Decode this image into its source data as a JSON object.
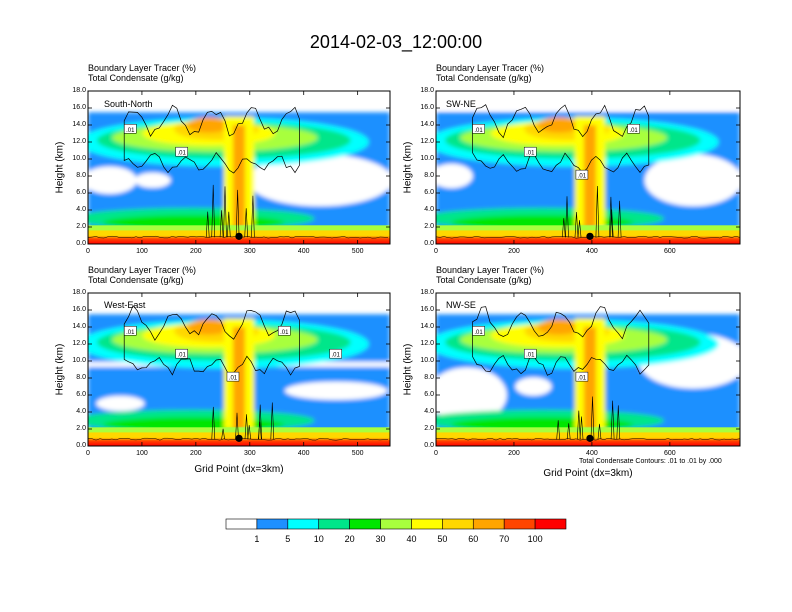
{
  "title": "2014-02-03_12:00:00",
  "chart_data": [
    {
      "type": "heatmap",
      "panel": "South-North",
      "title_lines": [
        "Boundary Layer Tracer   (%)",
        "Total Condensate   (g/kg)"
      ],
      "ylabel": "Height (km)",
      "xlabel": "",
      "xlim": [
        0,
        560
      ],
      "ylim": [
        0,
        18
      ],
      "xticks": [
        "0",
        "100",
        "200",
        "300",
        "400",
        "500"
      ],
      "xtick_values": [
        0,
        100,
        200,
        300,
        400,
        500
      ],
      "yticks": [
        "0.0",
        "2.0",
        "4.0",
        "6.0",
        "8.0",
        "10.0",
        "12.0",
        "14.0",
        "16.0",
        "18.0"
      ],
      "marker_x": 280,
      "contour_labels": [
        ".01",
        ".01"
      ]
    },
    {
      "type": "heatmap",
      "panel": "SW-NE",
      "title_lines": [
        "Boundary Layer Tracer   (%)",
        "Total Condensate   (g/kg)"
      ],
      "ylabel": "Height (km)",
      "xlabel": "",
      "xlim": [
        0,
        780
      ],
      "ylim": [
        0,
        18
      ],
      "xticks": [
        "0",
        "200",
        "400",
        "600"
      ],
      "xtick_values": [
        0,
        200,
        400,
        600
      ],
      "yticks": [
        "0.0",
        "2.0",
        "4.0",
        "6.0",
        "8.0",
        "10.0",
        "12.0",
        "14.0",
        "16.0",
        "18.0"
      ],
      "marker_x": 395,
      "contour_labels": [
        ".01",
        ".01",
        ".01",
        ".01"
      ]
    },
    {
      "type": "heatmap",
      "panel": "West-East",
      "title_lines": [
        "Boundary Layer Tracer   (%)",
        "Total Condensate   (g/kg)"
      ],
      "ylabel": "Height (km)",
      "xlabel": "Grid Point (dx=3km)",
      "xlim": [
        0,
        560
      ],
      "ylim": [
        0,
        18
      ],
      "xticks": [
        "0",
        "100",
        "200",
        "300",
        "400",
        "500"
      ],
      "xtick_values": [
        0,
        100,
        200,
        300,
        400,
        500
      ],
      "yticks": [
        "0.0",
        "2.0",
        "4.0",
        "6.0",
        "8.0",
        "10.0",
        "12.0",
        "14.0",
        "16.0",
        "18.0"
      ],
      "marker_x": 280,
      "contour_labels": [
        ".01",
        ".01",
        ".01",
        ".01",
        ".01"
      ]
    },
    {
      "type": "heatmap",
      "panel": "NW-SE",
      "title_lines": [
        "Boundary Layer Tracer   (%)",
        "Total Condensate   (g/kg)"
      ],
      "ylabel": "Height (km)",
      "xlabel": "Grid Point (dx=3km)",
      "xlim": [
        0,
        780
      ],
      "ylim": [
        0,
        18
      ],
      "xticks": [
        "0",
        "200",
        "400",
        "600"
      ],
      "xtick_values": [
        0,
        200,
        400,
        600
      ],
      "yticks": [
        "0.0",
        "2.0",
        "4.0",
        "6.0",
        "8.0",
        "10.0",
        "12.0",
        "14.0",
        "16.0",
        "18.0"
      ],
      "marker_x": 395,
      "contour_labels": [
        ".01",
        ".01",
        ".01"
      ]
    }
  ],
  "contour_note": "Total Condensate Contours: .01 to .01 by .000",
  "colorbar": {
    "labels": [
      "1",
      "5",
      "10",
      "20",
      "30",
      "40",
      "50",
      "60",
      "70",
      "100"
    ],
    "colors": [
      "#ffffff",
      "#1e90ff",
      "#00ffff",
      "#00e68a",
      "#00e600",
      "#a8ff3e",
      "#ffff00",
      "#ffd700",
      "#ffa500",
      "#ff4500",
      "#ff0000"
    ]
  }
}
